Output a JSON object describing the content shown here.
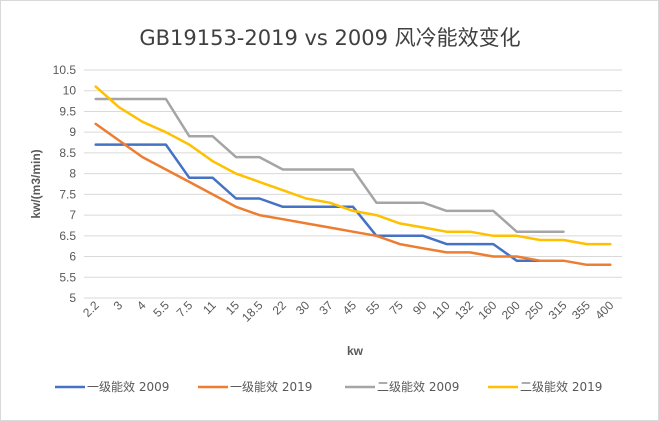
{
  "chart_data": {
    "type": "line",
    "title": "GB19153-2019 vs 2009 风冷能效变化",
    "xlabel": "kw",
    "ylabel": "kw/(m3/min)",
    "ylim": [
      5,
      10.5
    ],
    "ytick_step": 0.5,
    "grid": true,
    "legend_position": "bottom",
    "categories": [
      "2.2",
      "3",
      "4",
      "5.5",
      "7.5",
      "11",
      "15",
      "18.5",
      "22",
      "30",
      "37",
      "45",
      "55",
      "75",
      "90",
      "110",
      "132",
      "160",
      "200",
      "250",
      "315",
      "355",
      "400"
    ],
    "series": [
      {
        "name": "一级能效 2009",
        "color": "#4472c4",
        "values": [
          8.7,
          8.7,
          8.7,
          8.7,
          7.9,
          7.9,
          7.4,
          7.4,
          7.2,
          7.2,
          7.2,
          7.2,
          6.5,
          6.5,
          6.5,
          6.3,
          6.3,
          6.3,
          5.9,
          5.9,
          null,
          null,
          null
        ]
      },
      {
        "name": "一级能效 2019",
        "color": "#ed7d31",
        "values": [
          9.2,
          8.8,
          8.4,
          8.1,
          7.8,
          7.5,
          7.2,
          7.0,
          6.9,
          6.8,
          6.7,
          6.6,
          6.5,
          6.3,
          6.2,
          6.1,
          6.1,
          6.0,
          6.0,
          5.9,
          5.9,
          5.8,
          5.8
        ]
      },
      {
        "name": "二级能效 2009",
        "color": "#a5a5a5",
        "values": [
          9.8,
          9.8,
          9.8,
          9.8,
          8.9,
          8.9,
          8.4,
          8.4,
          8.1,
          8.1,
          8.1,
          8.1,
          7.3,
          7.3,
          7.3,
          7.1,
          7.1,
          7.1,
          6.6,
          6.6,
          6.6,
          null,
          null
        ]
      },
      {
        "name": "二级能效 2019",
        "color": "#ffc000",
        "values": [
          10.1,
          9.6,
          9.25,
          9.0,
          8.7,
          8.3,
          8.0,
          7.8,
          7.6,
          7.4,
          7.3,
          7.1,
          7.0,
          6.8,
          6.7,
          6.6,
          6.6,
          6.5,
          6.5,
          6.4,
          6.4,
          6.3,
          6.3
        ]
      }
    ]
  }
}
